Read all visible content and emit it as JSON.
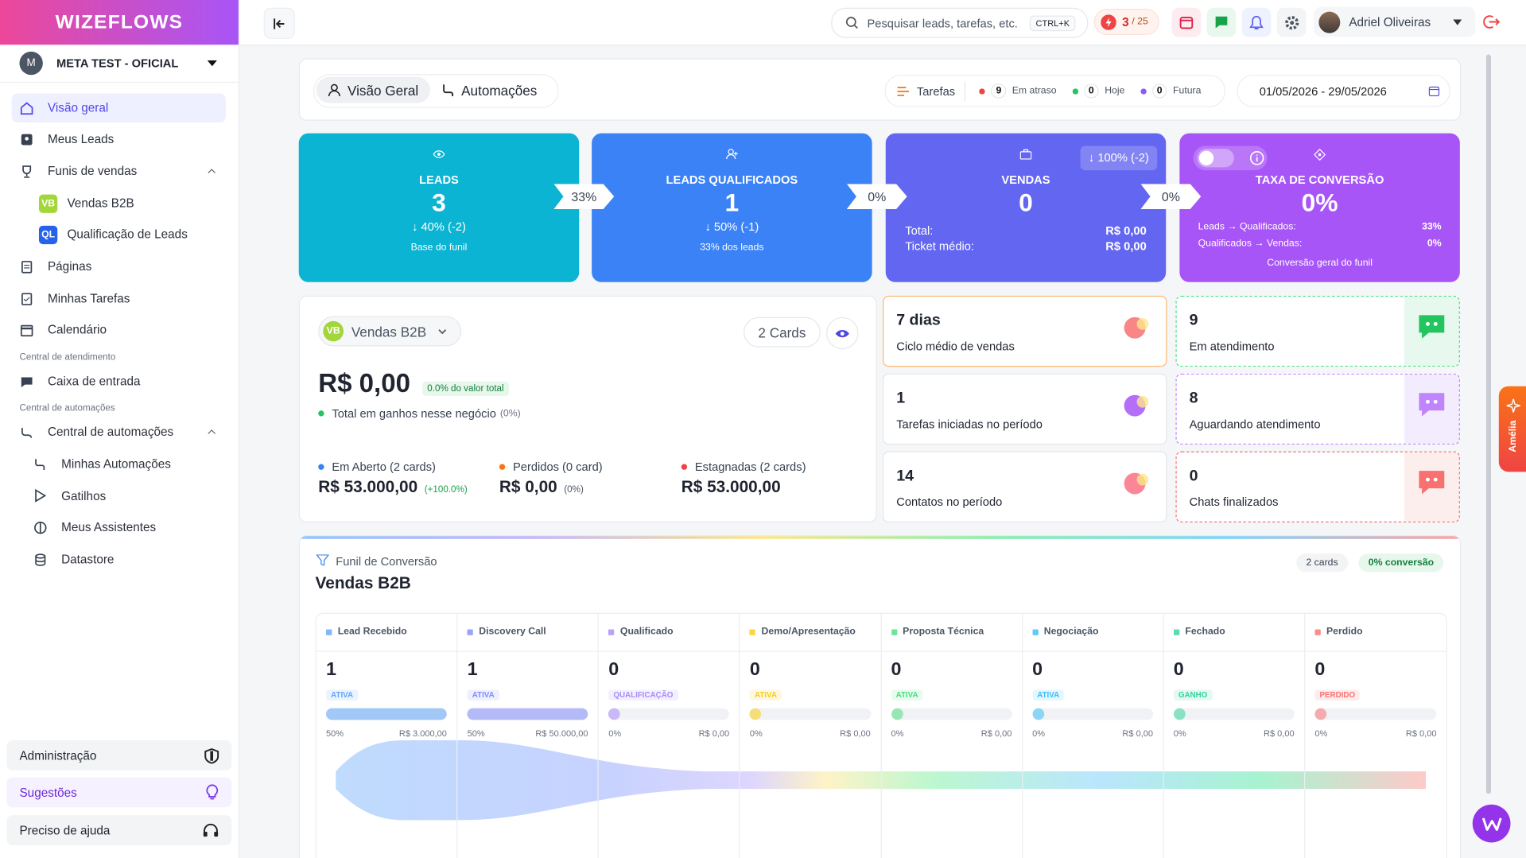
{
  "brand": "WIZEFLOWS",
  "workspace": {
    "initial": "M",
    "name": "META TEST - OFICIAL"
  },
  "sidebar": {
    "overview": "Visão geral",
    "leads": "Meus Leads",
    "funnels": "Funis de vendas",
    "funnel_items": [
      {
        "badge": "VB",
        "label": "Vendas B2B"
      },
      {
        "badge": "QL",
        "label": "Qualificação de Leads"
      }
    ],
    "pages": "Páginas",
    "tasks": "Minhas Tarefas",
    "calendar": "Calendário",
    "section_support": "Central de atendimento",
    "inbox": "Caixa de entrada",
    "section_automation": "Central de automações",
    "automation_center": "Central de automações",
    "automation_items": [
      "Minhas Automações",
      "Gatilhos",
      "Meus Assistentes",
      "Datastore"
    ],
    "admin": "Administração",
    "suggestions": "Sugestões",
    "help": "Preciso de ajuda"
  },
  "topbar": {
    "search": "Pesquisar leads, tarefas, etc.",
    "shortcut": "CTRL+K",
    "credits_used": "3",
    "credits_total": "/ 25",
    "user": "Adriel Oliveiras"
  },
  "tabs": [
    "Visão Geral",
    "Automações"
  ],
  "tasks_bar": {
    "label": "Tarefas",
    "items": [
      {
        "count": "9",
        "label": "Em atraso"
      },
      {
        "count": "0",
        "label": "Hoje"
      },
      {
        "count": "0",
        "label": "Futura"
      }
    ]
  },
  "date_range": "01/05/2026 - 29/05/2026",
  "kpis": {
    "leads": {
      "title": "LEADS",
      "value": "3",
      "change": "↓ 40% (-2)",
      "note": "Base do funil"
    },
    "conn1": "33%",
    "qualified": {
      "title": "LEADS QUALIFICADOS",
      "value": "1",
      "change": "↓ 50% (-1)",
      "note": "33% dos leads"
    },
    "conn2": "0%",
    "sales": {
      "title": "VENDAS",
      "value": "0",
      "change": "↓ 100% (-2)",
      "total_label": "Total:",
      "total": "R$ 0,00",
      "ticket_label": "Ticket médio:",
      "ticket": "R$ 0,00"
    },
    "conn3": "0%",
    "conversion": {
      "title": "TAXA DE CONVERSÃO",
      "value": "0%",
      "row1_label": "Leads → Qualificados:",
      "row1": "33%",
      "row2_label": "Qualificados → Vendas:",
      "row2": "0%",
      "note": "Conversão geral do funil"
    }
  },
  "pipeline": {
    "badge": "VB",
    "name": "Vendas B2B",
    "cards": "2 Cards",
    "won": "R$ 0,00",
    "won_share": "0.0% do valor total",
    "won_label": "Total em ganhos nesse negócio",
    "won_pct": "(0%)",
    "groups": [
      {
        "label": "Em Aberto (2 cards)",
        "value": "R$ 53.000,00",
        "change": "(+100.0%)"
      },
      {
        "label": "Perdidos (0 card)",
        "value": "R$ 0,00",
        "change": "(0%)"
      },
      {
        "label": "Estagnadas (2 cards)",
        "value": "R$ 53.000,00"
      }
    ]
  },
  "stats": [
    {
      "value": "7 dias",
      "label": "Ciclo médio de vendas"
    },
    {
      "value": "9",
      "label": "Em atendimento"
    },
    {
      "value": "1",
      "label": "Tarefas iniciadas no período"
    },
    {
      "value": "8",
      "label": "Aguardando atendimento"
    },
    {
      "value": "14",
      "label": "Contatos no período"
    },
    {
      "value": "0",
      "label": "Chats finalizados"
    }
  ],
  "funnel": {
    "kicker": "Funil de Conversão",
    "title": "Vendas B2B",
    "cards": "2 cards",
    "conversion": "0% conversão",
    "stages": [
      {
        "name": "Lead Recebido",
        "count": "1",
        "status": "ATIVA",
        "pct": "50%",
        "value": "R$ 3.000,00",
        "color": "#60a5fa"
      },
      {
        "name": "Discovery Call",
        "count": "1",
        "status": "ATIVA",
        "pct": "50%",
        "value": "R$ 50.000,00",
        "color": "#818cf8"
      },
      {
        "name": "Qualificado",
        "count": "0",
        "status": "QUALIFICAÇÃO",
        "pct": "0%",
        "value": "R$ 0,00",
        "color": "#a78bfa"
      },
      {
        "name": "Demo/Apresentação",
        "count": "0",
        "status": "ATIVA",
        "pct": "0%",
        "value": "R$ 0,00",
        "color": "#facc15"
      },
      {
        "name": "Proposta Técnica",
        "count": "0",
        "status": "ATIVA",
        "pct": "0%",
        "value": "R$ 0,00",
        "color": "#4ade80"
      },
      {
        "name": "Negociação",
        "count": "0",
        "status": "ATIVA",
        "pct": "0%",
        "value": "R$ 0,00",
        "color": "#38bdf8"
      },
      {
        "name": "Fechado",
        "count": "0",
        "status": "GANHO",
        "pct": "0%",
        "value": "R$ 0,00",
        "color": "#34d399"
      },
      {
        "name": "Perdido",
        "count": "0",
        "status": "PERDIDO",
        "pct": "0%",
        "value": "R$ 0,00",
        "color": "#f87171"
      }
    ]
  },
  "assistant_tab": "Amélia"
}
